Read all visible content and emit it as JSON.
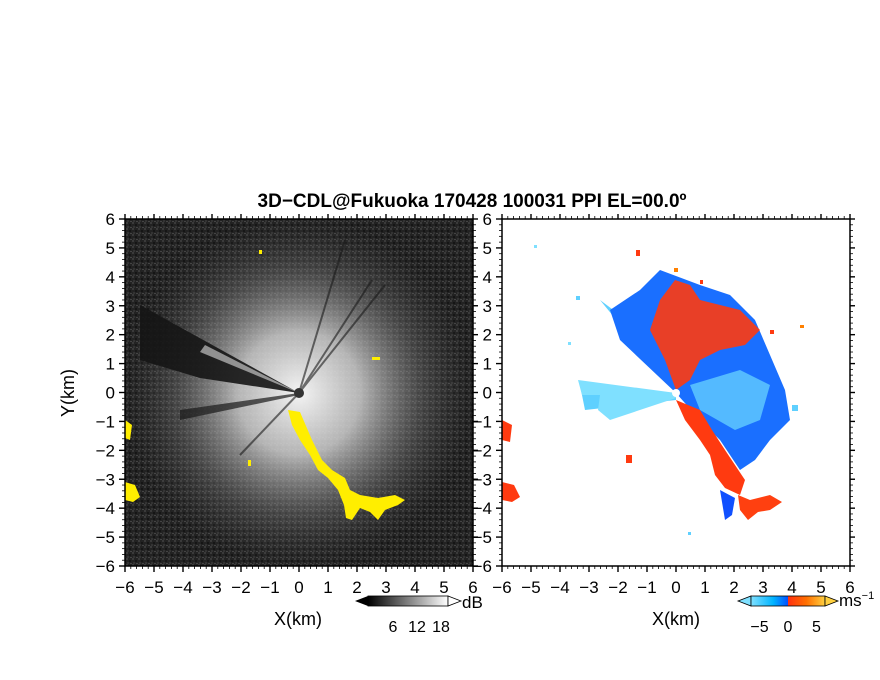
{
  "title": "3D−CDL@Fukuoka 170428 100031 PPI EL=00.0º",
  "chart_data": [
    {
      "type": "heatmap",
      "panel": "reflectivity",
      "xlabel": "X(km)",
      "ylabel": "Y(km)",
      "xlim": [
        -6,
        6
      ],
      "ylim": [
        -6,
        6
      ],
      "xticks": [
        "−6",
        "−5",
        "−4",
        "−3",
        "−2",
        "−1",
        "0",
        "1",
        "2",
        "3",
        "4",
        "5",
        "6"
      ],
      "yticks": [
        "−6",
        "−5",
        "−4",
        "−3",
        "−2",
        "−1",
        "0",
        "1",
        "2",
        "3",
        "4",
        "5",
        "6"
      ],
      "colorbar": {
        "unit": "dB",
        "ticks": [
          "6",
          "12",
          "18"
        ],
        "colors": [
          "#000000",
          "#ffffff"
        ]
      },
      "highlight_color": "#ffee00"
    },
    {
      "type": "heatmap",
      "panel": "doppler-velocity",
      "xlabel": "X(km)",
      "xlim": [
        -6,
        6
      ],
      "ylim": [
        -6,
        6
      ],
      "xticks": [
        "−6",
        "−5",
        "−4",
        "−3",
        "−2",
        "−1",
        "0",
        "1",
        "2",
        "3",
        "4",
        "5",
        "6"
      ],
      "yticks": [
        "−6",
        "−5",
        "−4",
        "−3",
        "−2",
        "−1",
        "0",
        "1",
        "2",
        "3",
        "4",
        "5",
        "6"
      ],
      "colorbar": {
        "unit": "ms",
        "unit_exponent": "−1",
        "ticks": [
          "−5",
          "0",
          "5"
        ],
        "values": [
          -5,
          0,
          5
        ],
        "colors": [
          "#7fe0ff",
          "#00b4ff",
          "#0050ff",
          "#ff3010",
          "#ff7000",
          "#ffd040"
        ]
      }
    }
  ]
}
